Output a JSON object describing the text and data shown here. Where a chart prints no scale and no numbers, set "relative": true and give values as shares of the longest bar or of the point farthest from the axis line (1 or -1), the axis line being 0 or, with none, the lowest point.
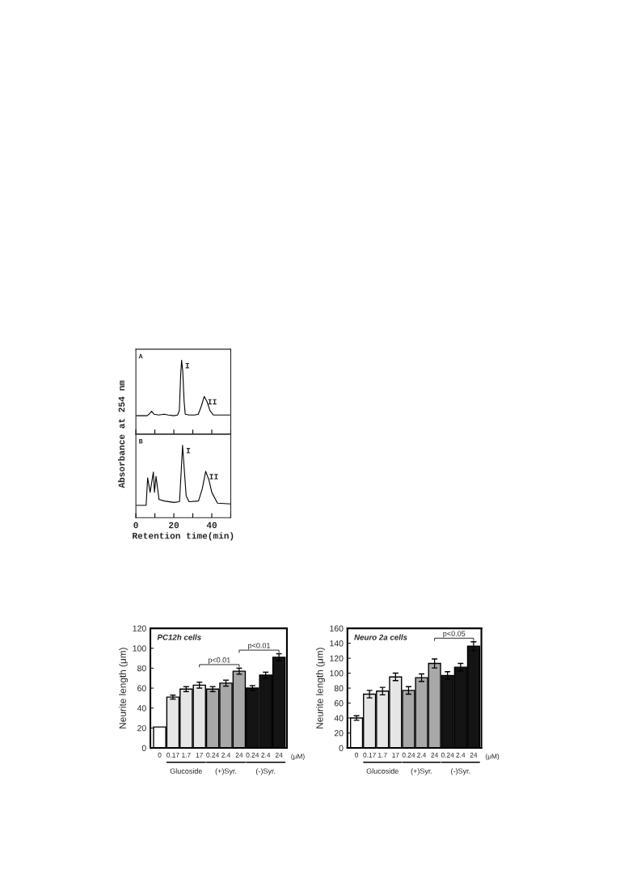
{
  "chart_data": [
    {
      "type": "line",
      "title": "A",
      "ylabel": "Absorbance at 254 nm",
      "relative": true,
      "xlim": [
        0,
        50
      ],
      "xticks": [
        0,
        {
          "value": 10,
          "label": null
        },
        20,
        {
          "value": 30,
          "label": null
        },
        40,
        {
          "value": 50,
          "label": null
        }
      ],
      "tick_labels": false,
      "series": [
        {
          "color": "#000000",
          "x": [
            0,
            5.9,
            7,
            8.3,
            9.5,
            12,
            15,
            17,
            20,
            22,
            22.9,
            23.6,
            24.1,
            24.7,
            25.4,
            26,
            28,
            31,
            32.9,
            34.5,
            36,
            37.5,
            39,
            40.8,
            44,
            49.5
          ],
          "values": [
            0.25,
            0.25,
            0.27,
            0.31,
            0.27,
            0.26,
            0.27,
            0.26,
            0.25,
            0.26,
            0.32,
            0.8,
            1.0,
            0.85,
            0.45,
            0.27,
            0.26,
            0.26,
            0.27,
            0.38,
            0.51,
            0.44,
            0.32,
            0.26,
            0.26,
            0.26
          ]
        }
      ],
      "annotations": [
        {
          "text": "I",
          "x": 24.1,
          "y": 1.0
        },
        {
          "text": "II",
          "x": 36,
          "y": 0.51
        }
      ]
    },
    {
      "type": "line",
      "title": "B",
      "xlabel": "Retention time(min)",
      "relative": true,
      "xlim": [
        0,
        50
      ],
      "xticks": [
        0,
        {
          "value": 10,
          "label": null
        },
        20,
        {
          "value": 30,
          "label": null
        },
        40,
        {
          "value": 50,
          "label": null
        }
      ],
      "tick_labels": "x",
      "series": [
        {
          "color": "#000000",
          "x": [
            0,
            5.4,
            6.2,
            7.5,
            9.2,
            9.8,
            10.6,
            12.2,
            15,
            20,
            23,
            23.8,
            24.6,
            25.4,
            26.5,
            28,
            33,
            35,
            36.8,
            38.5,
            40,
            43,
            50
          ],
          "values": [
            0.17,
            0.17,
            0.55,
            0.35,
            0.63,
            0.35,
            0.57,
            0.25,
            0.23,
            0.21,
            0.22,
            0.6,
            1.0,
            0.7,
            0.3,
            0.22,
            0.23,
            0.4,
            0.64,
            0.52,
            0.35,
            0.2,
            0.19
          ]
        }
      ],
      "annotations": [
        {
          "text": "I",
          "x": 24.6,
          "y": 1.0
        },
        {
          "text": "II",
          "x": 36.8,
          "y": 0.64
        }
      ]
    },
    {
      "type": "bar",
      "title": "PC12h cells",
      "ylabel": "Neurite length (μm)",
      "categories": [
        "0",
        "0.17",
        "1.7",
        "17",
        "0.24",
        "2.4",
        "24",
        "0.24",
        "2.4",
        "24"
      ],
      "values": [
        21,
        51,
        59,
        63,
        59,
        65,
        77,
        60,
        73,
        91
      ],
      "errors": [
        null,
        2,
        2.5,
        3,
        2.5,
        3,
        3,
        2.5,
        3,
        3.5
      ],
      "colors": [
        "#ffffff",
        "#e6e6e6",
        "#e6e6e6",
        "#e6e6e6",
        "#a8a8a8",
        "#a8a8a8",
        "#a8a8a8",
        "#141414",
        "#141414",
        "#141414"
      ],
      "ylim": [
        0,
        120
      ],
      "yticks": [
        0,
        20,
        40,
        60,
        80,
        100,
        120
      ],
      "annotations": [
        "(μM)",
        "Glucoside",
        "(+)Syr.",
        "(-)Syr.",
        "p<0.01",
        "p<0.01"
      ]
    },
    {
      "type": "bar",
      "title": "Neuro 2a cells",
      "ylabel": "Neurite length (μm)",
      "categories": [
        "0",
        "0.17",
        "1.7",
        "17",
        "0.24",
        "2.4",
        "24",
        "0.24",
        "2.4",
        "24"
      ],
      "values": [
        40,
        72,
        76,
        95,
        77,
        94,
        113,
        97,
        108,
        136
      ],
      "errors": [
        3,
        5,
        5,
        5,
        5,
        5,
        6,
        5,
        5,
        6
      ],
      "colors": [
        "#ffffff",
        "#e6e6e6",
        "#e6e6e6",
        "#e6e6e6",
        "#a8a8a8",
        "#a8a8a8",
        "#a8a8a8",
        "#141414",
        "#141414",
        "#141414"
      ],
      "ylim": [
        0,
        160
      ],
      "yticks": [
        0,
        20,
        40,
        60,
        80,
        100,
        120,
        140,
        160
      ],
      "annotations": [
        "(μM)",
        "Glucoside",
        "(+)Syr.",
        "(-)Syr.",
        "p<0.05"
      ]
    }
  ]
}
